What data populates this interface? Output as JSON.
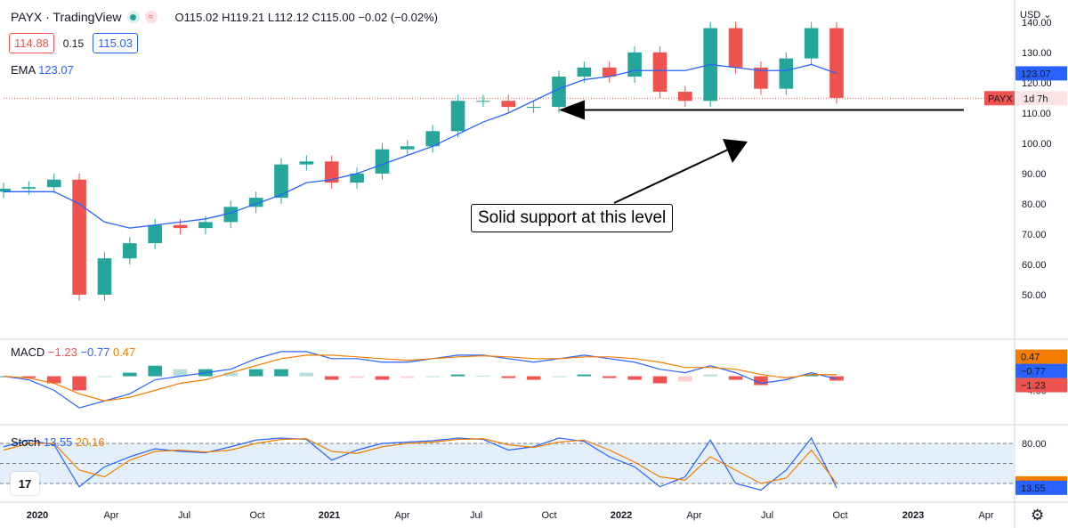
{
  "header": {
    "symbol_line": "PAYX · TradingView",
    "ohlc": {
      "open_label": "O",
      "open": "115.02",
      "high_label": "H",
      "high": "119.21",
      "low_label": "L",
      "low": "112.12",
      "close_label": "C",
      "close": "115.00",
      "change": "−0.02 (−0.02%)"
    },
    "sell_price": "114.88",
    "spread": "0.15",
    "buy_price": "115.03",
    "ema_label": "EMA",
    "ema_value": "123.07",
    "currency": "USD"
  },
  "macd": {
    "label": "MACD",
    "hist": "−1.23",
    "macd": "−0.77",
    "signal": "0.47"
  },
  "stoch": {
    "label": "Stoch",
    "k": "13.55",
    "d": "20.16"
  },
  "annotation": "Solid support at this level",
  "price_tag": {
    "symbol": "PAYX",
    "time": "1d 7h"
  },
  "colors": {
    "up": "#26a69a",
    "down": "#ef5350",
    "ema": "#2962ff",
    "macd_line": "#2962ff",
    "signal_line": "#f57c00",
    "hist_pos_strong": "#26a69a",
    "hist_pos_weak": "#b2dfdb",
    "hist_neg_strong": "#ef5350",
    "hist_neg_weak": "#ffcdd2",
    "stoch_band": "#e3f0fb"
  },
  "icons": {
    "settings": "gear-icon",
    "logo": "tradingview-logo-icon"
  },
  "chart_data": [
    {
      "type": "candlestick",
      "title": "PAYX · TradingView",
      "timeframe": "weekly",
      "x": [
        "2019-12",
        "2020-01",
        "2020-02",
        "2020-03",
        "2020-04",
        "2020-05",
        "2020-06",
        "2020-07",
        "2020-08",
        "2020-09",
        "2020-10",
        "2020-11",
        "2020-12",
        "2021-01",
        "2021-02",
        "2021-03",
        "2021-04",
        "2021-05",
        "2021-06",
        "2021-07",
        "2021-08",
        "2021-09",
        "2021-10",
        "2021-11",
        "2021-12",
        "2022-01",
        "2022-02",
        "2022-03",
        "2022-04",
        "2022-05",
        "2022-06",
        "2022-07",
        "2022-08",
        "2022-09"
      ],
      "series": [
        {
          "name": "PAYX",
          "close": [
            85,
            85.5,
            88,
            50,
            62,
            67,
            73,
            72,
            74,
            79,
            82,
            93,
            94,
            87,
            90,
            98,
            99,
            104,
            114,
            114,
            112,
            112,
            122,
            125,
            122,
            130,
            117,
            114,
            138,
            125,
            118,
            128,
            138,
            115
          ]
        },
        {
          "name": "EMA",
          "values": [
            84,
            84,
            84,
            80,
            74,
            72,
            73,
            74,
            75,
            77,
            80,
            83,
            87,
            88,
            90,
            93,
            96,
            99,
            103,
            107,
            110,
            114,
            118,
            121,
            122,
            124,
            124,
            124,
            126,
            125,
            124,
            124,
            126,
            123.07
          ]
        }
      ],
      "ylim": [
        45,
        142
      ],
      "yticks": [
        50,
        60,
        70,
        80,
        90,
        100,
        110,
        120,
        130,
        140
      ],
      "support_level": 111,
      "last_price": 114.88,
      "xticks": [
        "2020",
        "Apr",
        "Jul",
        "Oct",
        "2021",
        "Apr",
        "Jul",
        "Oct",
        "2022",
        "Apr",
        "Jul",
        "Oct",
        "2023",
        "Apr"
      ]
    },
    {
      "type": "macd",
      "macd": [
        0,
        -1,
        -4,
        -9,
        -7,
        -5,
        -1,
        0,
        1,
        2,
        5,
        7,
        7,
        5,
        5,
        4,
        4,
        5,
        6,
        6,
        5,
        4,
        5,
        6,
        5,
        4,
        2,
        1,
        3,
        1,
        -2,
        -1,
        1,
        -0.77
      ],
      "signal": [
        0,
        -0.5,
        -2,
        -5,
        -7,
        -6,
        -4,
        -2,
        -1,
        1,
        3,
        5,
        6,
        6,
        5.5,
        5,
        4.5,
        5,
        5.5,
        5.8,
        5.5,
        5,
        5,
        5.5,
        5.5,
        5,
        4,
        2.5,
        2.5,
        2,
        0.5,
        -0.5,
        0.5,
        0.47
      ],
      "histogram_last": -1.23,
      "yticks": [
        4,
        -4
      ]
    },
    {
      "type": "stochastic",
      "k": [
        75,
        85,
        78,
        15,
        45,
        60,
        72,
        68,
        66,
        75,
        85,
        88,
        86,
        55,
        70,
        80,
        82,
        84,
        88,
        86,
        70,
        75,
        88,
        83,
        60,
        45,
        15,
        30,
        85,
        20,
        10,
        40,
        88,
        13.55
      ],
      "d": [
        70,
        80,
        80,
        40,
        30,
        55,
        68,
        70,
        67,
        70,
        80,
        86,
        87,
        68,
        65,
        75,
        80,
        82,
        86,
        87,
        78,
        74,
        82,
        85,
        70,
        52,
        30,
        25,
        60,
        40,
        20,
        28,
        70,
        20.16
      ],
      "bands": [
        80,
        20
      ],
      "yticks": [
        80
      ]
    }
  ]
}
